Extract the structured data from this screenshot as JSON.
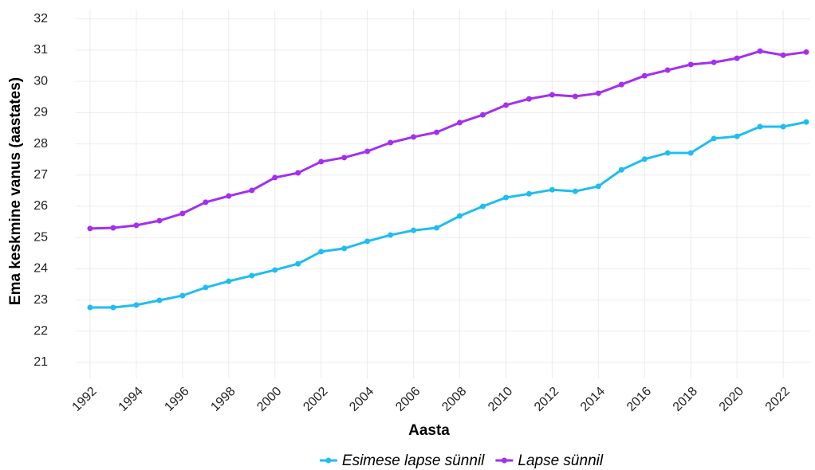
{
  "chart_data": {
    "type": "line",
    "x_label": "Aasta",
    "y_label": "Ema keskmine vanus (aastates)",
    "x": [
      1992,
      1993,
      1994,
      1995,
      1996,
      1997,
      1998,
      1999,
      2000,
      2001,
      2002,
      2003,
      2004,
      2005,
      2006,
      2007,
      2008,
      2009,
      2010,
      2011,
      2012,
      2013,
      2014,
      2015,
      2016,
      2017,
      2018,
      2019,
      2020,
      2021,
      2022,
      2023
    ],
    "series": [
      {
        "name": "Esimese lapse sünnil",
        "color": "#1fbdf0",
        "values": [
          22.76,
          22.76,
          22.84,
          22.99,
          23.14,
          23.4,
          23.6,
          23.78,
          23.96,
          24.16,
          24.55,
          24.65,
          24.88,
          25.08,
          25.23,
          25.31,
          25.69,
          26.0,
          26.28,
          26.4,
          26.53,
          26.48,
          26.64,
          27.17,
          27.51,
          27.71,
          27.71,
          28.17,
          28.24,
          28.55,
          28.55,
          28.7
        ]
      },
      {
        "name": "Lapse sünnil",
        "color": "#a32ff0",
        "values": [
          25.29,
          25.31,
          25.39,
          25.54,
          25.77,
          26.13,
          26.33,
          26.51,
          26.92,
          27.07,
          27.43,
          27.56,
          27.76,
          28.04,
          28.22,
          28.37,
          28.68,
          28.93,
          29.24,
          29.44,
          29.57,
          29.52,
          29.62,
          29.9,
          30.18,
          30.36,
          30.54,
          30.61,
          30.74,
          30.97,
          30.84,
          30.94
        ]
      }
    ],
    "xlim": [
      1991.38,
      2023.17
    ],
    "xticks": [
      1992,
      1994,
      1996,
      1998,
      2000,
      2002,
      2004,
      2006,
      2008,
      2010,
      2012,
      2014,
      2016,
      2018,
      2020,
      2022
    ],
    "ylim": [
      20.49,
      32.3
    ],
    "yticks": [
      21,
      22,
      23,
      24,
      25,
      26,
      27,
      28,
      29,
      30,
      31,
      32
    ],
    "grid": true,
    "legend": "bottom"
  }
}
